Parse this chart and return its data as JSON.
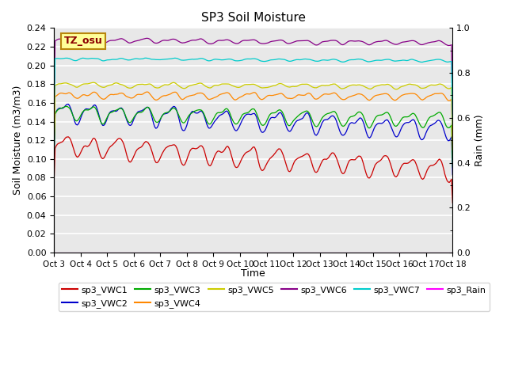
{
  "title": "SP3 Soil Moisture",
  "xlabel": "Time",
  "ylabel_left": "Soil Moisture (m3/m3)",
  "ylabel_right": "Rain (mm)",
  "annotation": "TZ_osu",
  "annotation_color": "#8B0000",
  "annotation_bg": "#FFFF99",
  "annotation_border": "#B8860B",
  "ylim_left": [
    0.0,
    0.24
  ],
  "ylim_right": [
    0.0,
    1.0
  ],
  "background_color": "#E8E8E8",
  "grid_color": "#FFFFFF",
  "series": {
    "sp3_VWC1": {
      "color": "#CC0000",
      "base": 0.115,
      "trend": -0.026,
      "amp": 0.01,
      "noise": 0.003
    },
    "sp3_VWC2": {
      "color": "#0000CC",
      "base": 0.151,
      "trend": -0.02,
      "amp": 0.009,
      "noise": 0.003
    },
    "sp3_VWC3": {
      "color": "#00AA00",
      "base": 0.15,
      "trend": -0.008,
      "amp": 0.007,
      "noise": 0.002
    },
    "sp3_VWC4": {
      "color": "#FF8800",
      "base": 0.168,
      "trend": -0.001,
      "amp": 0.003,
      "noise": 0.002
    },
    "sp3_VWC5": {
      "color": "#CCCC00",
      "base": 0.179,
      "trend": -0.001,
      "amp": 0.002,
      "noise": 0.0015
    },
    "sp3_VWC6": {
      "color": "#880088",
      "base": 0.227,
      "trend": -0.003,
      "amp": 0.002,
      "noise": 0.001
    },
    "sp3_VWC7": {
      "color": "#00CCCC",
      "base": 0.207,
      "trend": -0.002,
      "amp": 0.001,
      "noise": 0.001
    },
    "sp3_Rain": {
      "color": "#FF00FF",
      "base": 0.0,
      "trend": 0.0,
      "amp": 0.0,
      "noise": 0.0
    }
  },
  "legend_order": [
    "sp3_VWC1",
    "sp3_VWC2",
    "sp3_VWC3",
    "sp3_VWC4",
    "sp3_VWC5",
    "sp3_VWC6",
    "sp3_VWC7",
    "sp3_Rain"
  ],
  "xtick_labels": [
    "Oct 3",
    "Oct 4",
    "Oct 5",
    "Oct 6",
    "Oct 7",
    "Oct 8",
    "Oct 9",
    "Oct 10",
    "Oct 11",
    "Oct 12",
    "Oct 13",
    "Oct 14",
    "Oct 15",
    "Oct 16",
    "Oct 17",
    "Oct 18"
  ],
  "yticks_left": [
    0.0,
    0.02,
    0.04,
    0.06,
    0.08,
    0.1,
    0.12,
    0.14,
    0.16,
    0.18,
    0.2,
    0.22,
    0.24
  ],
  "yticks_right": [
    0.0,
    0.2,
    0.4,
    0.6,
    0.8,
    1.0
  ]
}
